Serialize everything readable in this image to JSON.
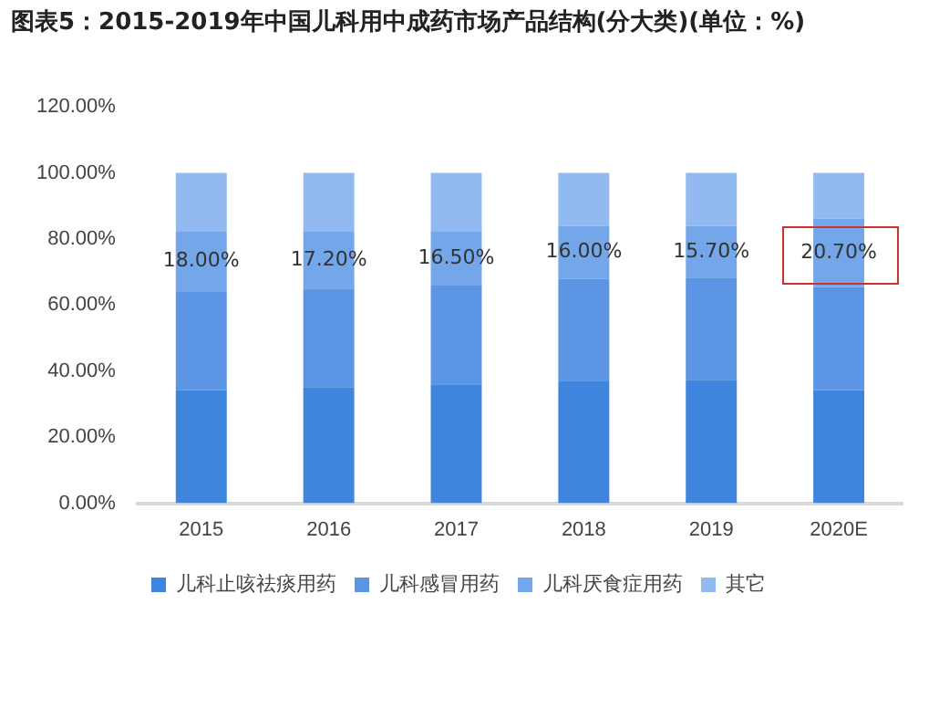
{
  "chart_data": {
    "type": "bar",
    "title": "图表5：2015-2019年中国儿科用中成药市场产品结构(分大类)(单位：%)",
    "categories": [
      "2015",
      "2016",
      "2017",
      "2018",
      "2019",
      "2020E"
    ],
    "stacked": true,
    "legend": "bottom",
    "grid": false,
    "ylim": [
      0,
      120
    ],
    "yticks": [
      {
        "value": 0,
        "label": "0.00%"
      },
      {
        "value": 20,
        "label": "20.00%"
      },
      {
        "value": 40,
        "label": "40.00%"
      },
      {
        "value": 60,
        "label": "60.00%"
      },
      {
        "value": 80,
        "label": "80.00%"
      },
      {
        "value": 100,
        "label": "100.00%"
      },
      {
        "value": 120,
        "label": "120.00%"
      }
    ],
    "series": [
      {
        "name": "儿科止咳祛痰用药",
        "color": "#3f85de",
        "values": [
          34.3,
          35.2,
          36.0,
          37.1,
          37.4,
          34.3
        ]
      },
      {
        "name": "儿科感冒用药",
        "color": "#5b95e3",
        "values": [
          29.9,
          29.8,
          29.9,
          30.9,
          30.9,
          31.2
        ]
      },
      {
        "name": "儿科厌食症用药",
        "color": "#74a6ea",
        "values": [
          18.0,
          17.2,
          16.5,
          16.0,
          15.7,
          20.7
        ],
        "value_labels": [
          "18.00%",
          "17.20%",
          "16.50%",
          "16.00%",
          "15.70%",
          "20.70%"
        ]
      },
      {
        "name": "其它",
        "color": "#92baf0",
        "values": [
          17.8,
          17.8,
          17.6,
          16.0,
          16.0,
          13.8
        ]
      }
    ]
  }
}
